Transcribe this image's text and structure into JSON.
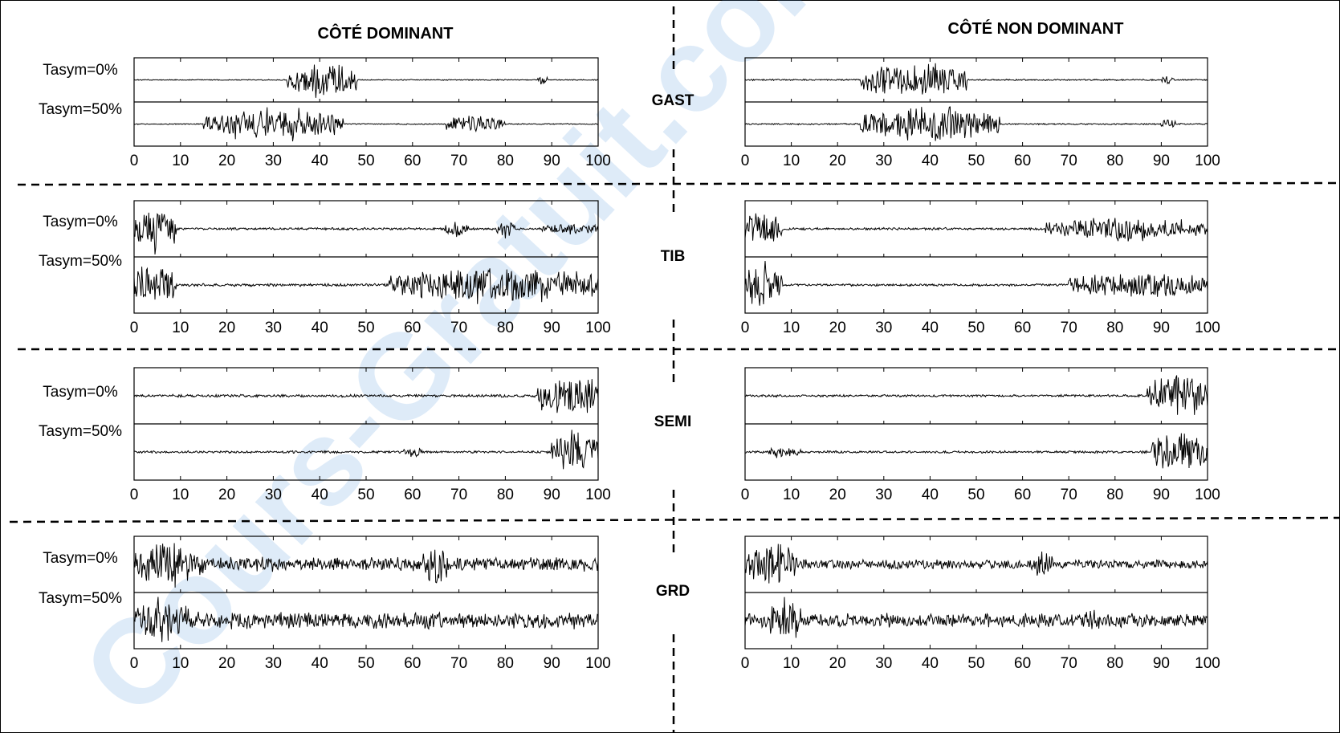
{
  "headers": {
    "left": "CÔTÉ DOMINANT",
    "right": "CÔTÉ NON DOMINANT"
  },
  "watermark": {
    "text": "Cours-Gratuit.com",
    "color": "#4a8fd8"
  },
  "colors": {
    "signal": "#000000",
    "frame": "#000000",
    "divider": "#000000"
  },
  "chart_data": {
    "type": "line",
    "x_ticks": [
      "0",
      "10",
      "20",
      "30",
      "40",
      "50",
      "60",
      "70",
      "80",
      "90",
      "100"
    ],
    "xlim": [
      0,
      100
    ],
    "sides": [
      "CÔTÉ DOMINANT",
      "CÔTÉ NON DOMINANT"
    ],
    "conditions": [
      "Tasym=0%",
      "Tasym=50%"
    ],
    "muscles": [
      {
        "name": "GAST",
        "dominant": {
          "Tasym=0%": {
            "bursts": [
              [
                33,
                48,
                1.0
              ],
              [
                87,
                89,
                0.3
              ]
            ],
            "noise": 0.03
          },
          "Tasym=50%": {
            "bursts": [
              [
                15,
                45,
                0.9
              ],
              [
                67,
                80,
                0.5
              ]
            ],
            "noise": 0.03
          }
        },
        "non_dominant": {
          "Tasym=0%": {
            "bursts": [
              [
                25,
                48,
                1.0
              ],
              [
                90,
                93,
                0.3
              ]
            ],
            "noise": 0.04
          },
          "Tasym=50%": {
            "bursts": [
              [
                25,
                55,
                1.0
              ],
              [
                90,
                93,
                0.3
              ]
            ],
            "noise": 0.04
          }
        }
      },
      {
        "name": "TIB",
        "dominant": {
          "Tasym=0%": {
            "bursts": [
              [
                0,
                9,
                1.0
              ],
              [
                67,
                72,
                0.35
              ],
              [
                78,
                82,
                0.4
              ],
              [
                88,
                100,
                0.25
              ]
            ],
            "noise": 0.05
          },
          "Tasym=50%": {
            "bursts": [
              [
                0,
                9,
                1.0
              ],
              [
                55,
                100,
                0.8
              ]
            ],
            "noise": 0.06
          }
        },
        "non_dominant": {
          "Tasym=0%": {
            "bursts": [
              [
                0,
                8,
                0.8
              ],
              [
                65,
                100,
                0.5
              ]
            ],
            "noise": 0.05
          },
          "Tasym=50%": {
            "bursts": [
              [
                0,
                8,
                1.0
              ],
              [
                70,
                100,
                0.6
              ]
            ],
            "noise": 0.05
          }
        }
      },
      {
        "name": "SEMI",
        "dominant": {
          "Tasym=0%": {
            "bursts": [
              [
                87,
                100,
                1.0
              ]
            ],
            "noise": 0.06
          },
          "Tasym=50%": {
            "bursts": [
              [
                58,
                62,
                0.25
              ],
              [
                90,
                100,
                0.9
              ]
            ],
            "noise": 0.05
          }
        },
        "non_dominant": {
          "Tasym=0%": {
            "bursts": [
              [
                87,
                100,
                1.0
              ]
            ],
            "noise": 0.05
          },
          "Tasym=50%": {
            "bursts": [
              [
                5,
                12,
                0.3
              ],
              [
                88,
                100,
                0.9
              ]
            ],
            "noise": 0.05
          }
        }
      },
      {
        "name": "GRD",
        "dominant": {
          "Tasym=0%": {
            "bursts": [
              [
                0,
                15,
                1.0
              ],
              [
                62,
                68,
                0.9
              ]
            ],
            "noise": 0.3
          },
          "Tasym=50%": {
            "bursts": [
              [
                0,
                12,
                1.0
              ]
            ],
            "noise": 0.35
          }
        },
        "non_dominant": {
          "Tasym=0%": {
            "bursts": [
              [
                0,
                12,
                0.9
              ],
              [
                62,
                67,
                0.6
              ]
            ],
            "noise": 0.2
          },
          "Tasym=50%": {
            "bursts": [
              [
                5,
                12,
                1.0
              ],
              [
                72,
                78,
                0.45
              ]
            ],
            "noise": 0.3
          }
        }
      }
    ],
    "grid": false,
    "legend": "none"
  }
}
